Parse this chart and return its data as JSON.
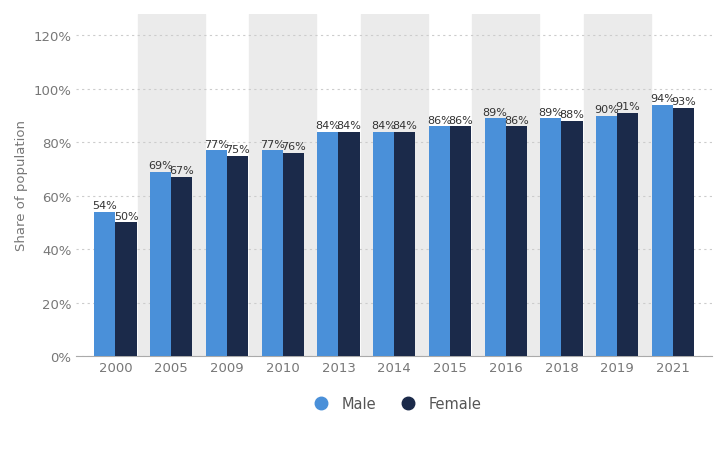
{
  "years": [
    "2000",
    "2005",
    "2009",
    "2010",
    "2013",
    "2014",
    "2015",
    "2016",
    "2018",
    "2019",
    "2021"
  ],
  "male": [
    54,
    69,
    77,
    77,
    84,
    84,
    86,
    89,
    89,
    90,
    94
  ],
  "female": [
    50,
    67,
    75,
    76,
    84,
    84,
    86,
    86,
    88,
    91,
    93
  ],
  "male_color": "#4A90D9",
  "female_color": "#1B2A4A",
  "ylabel": "Share of population",
  "yticks": [
    0,
    20,
    40,
    60,
    80,
    100,
    120
  ],
  "ylim": [
    0,
    128
  ],
  "background_color": "#ffffff",
  "plot_bg_color": "#ffffff",
  "stripe_color": "#ebebeb",
  "grid_color": "#cccccc",
  "bar_width": 0.38,
  "label_fontsize": 8.0,
  "tick_fontsize": 9.5,
  "ylabel_fontsize": 9.5,
  "legend_labels": [
    "Male",
    "Female"
  ],
  "legend_fontsize": 10.5
}
